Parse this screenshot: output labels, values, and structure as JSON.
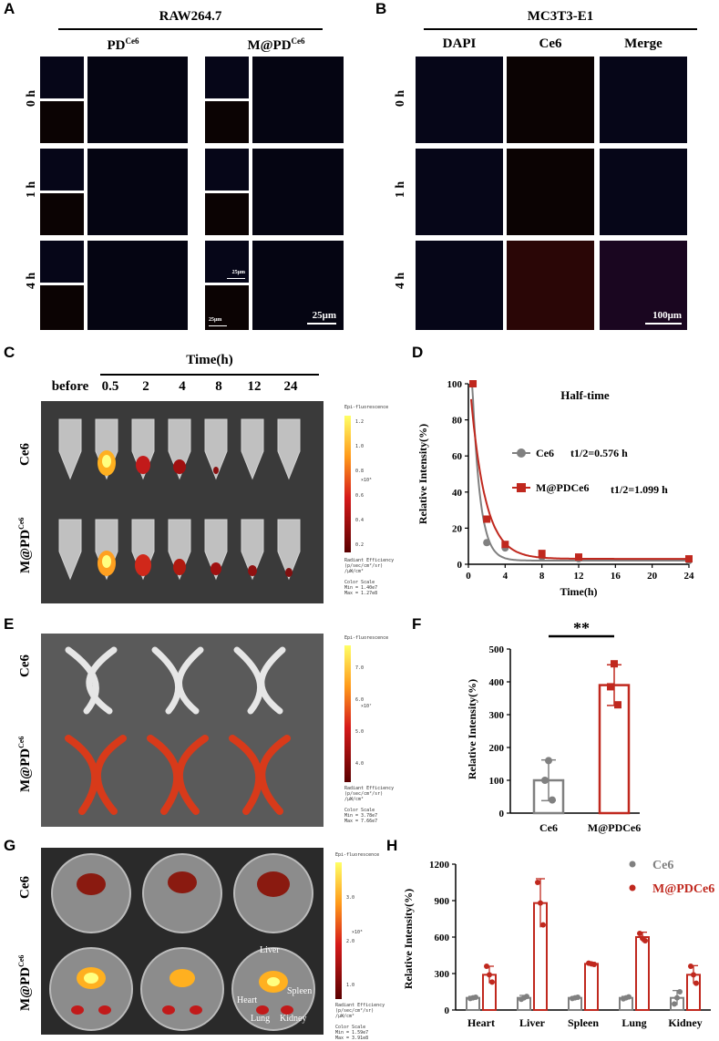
{
  "panels": {
    "A": "A",
    "B": "B",
    "C": "C",
    "D": "D",
    "E": "E",
    "F": "F",
    "G": "G",
    "H": "H"
  },
  "panelA": {
    "title": "RAW264.7",
    "groups": [
      "PD",
      "M@PD"
    ],
    "group_sup": "Ce6",
    "rows": [
      "0 h",
      "1 h",
      "4 h"
    ],
    "scalebar_small": "25μm",
    "scalebar_large": "25μm"
  },
  "panelB": {
    "title": "MC3T3-E1",
    "columns": [
      "DAPI",
      "Ce6",
      "Merge"
    ],
    "rows": [
      "0 h",
      "1 h",
      "4 h"
    ],
    "scalebar": "100μm"
  },
  "panelC": {
    "time_title": "Time(h)",
    "columns": [
      "before",
      "0.5",
      "2",
      "4",
      "8",
      "12",
      "24"
    ],
    "rows": [
      "Ce6",
      "M@PD"
    ],
    "row_sup": "Ce6",
    "colorbar_title": "Epi-fluorescence",
    "colorbar_ticks": [
      "1.2",
      "1.0",
      "0.8",
      "0.6",
      "0.4",
      "0.2"
    ],
    "colorbar_exp": "×10⁸",
    "legend_text": "Radiant Efficiency\n(p/sec/cm²/sr)\n/μW/cm²\n\nColor Scale\nMin = 1.40e7\nMax = 1.27e8"
  },
  "panelE": {
    "rows": [
      "Ce6",
      "M@PD"
    ],
    "row_sup": "Ce6",
    "colorbar_title": "Epi-fluorescence",
    "colorbar_ticks": [
      "7.0",
      "6.0",
      "5.0",
      "4.0"
    ],
    "colorbar_exp": "×10⁷",
    "legend_text": "Radiant Efficiency\n(p/sec/cm²/sr)\n/μW/cm²\n\nColor Scale\nMin = 3.78e7\nMax = 7.66e7"
  },
  "panelG": {
    "rows": [
      "Ce6",
      "M@PD"
    ],
    "row_sup": "Ce6",
    "organ_labels": [
      "Liver",
      "Heart",
      "Spleen",
      "Lung",
      "Kidney"
    ],
    "colorbar_title": "Epi-fluorescence",
    "colorbar_ticks": [
      "3.0",
      "2.0",
      "1.0"
    ],
    "colorbar_exp": "×10⁸",
    "legend_text": "Radiant Efficiency\n(p/sec/cm²/sr)\n/μW/cm²\n\nColor Scale\nMin = 1.59e7\nMax = 3.91e8"
  },
  "colors": {
    "ce6": "#808080",
    "mpd": "#c0281e"
  },
  "chart_data": [
    {
      "panel": "D",
      "type": "line",
      "title": "Half-time",
      "xlabel": "Time(h)",
      "ylabel": "Relative Intensity(%)",
      "xlim": [
        0,
        24
      ],
      "ylim": [
        0,
        100
      ],
      "xticks": [
        "0",
        "4",
        "8",
        "12",
        "16",
        "20",
        "24"
      ],
      "yticks": [
        "0",
        "20",
        "40",
        "60",
        "80",
        "100"
      ],
      "series": [
        {
          "name": "Ce6",
          "annotation": "t1/2=0.576 h",
          "x": [
            0.5,
            2,
            4,
            8,
            12,
            24
          ],
          "y": [
            100,
            12,
            9,
            4,
            3,
            2
          ]
        },
        {
          "name": "M@PDCe6",
          "annotation": "t1/2=1.099 h",
          "x": [
            0.5,
            2,
            4,
            8,
            12,
            24
          ],
          "y": [
            100,
            25,
            11,
            6,
            4,
            3
          ]
        }
      ]
    },
    {
      "panel": "F",
      "type": "bar",
      "ylabel": "Relative Intensity(%)",
      "categories": [
        "Ce6",
        "M@PDCe6"
      ],
      "values": [
        100,
        390
      ],
      "errors": [
        62,
        62
      ],
      "points": [
        [
          160,
          100,
          40
        ],
        [
          455,
          385,
          330
        ]
      ],
      "ylim": [
        0,
        500
      ],
      "yticks": [
        "0",
        "100",
        "200",
        "300",
        "400",
        "500"
      ],
      "significance": "**"
    },
    {
      "panel": "H",
      "type": "bar",
      "ylabel": "Relative Intensity(%)",
      "categories": [
        "Heart",
        "Liver",
        "Spleen",
        "Lung",
        "Kidney"
      ],
      "ylim": [
        0,
        1200
      ],
      "yticks": [
        "0",
        "300",
        "600",
        "900",
        "1200"
      ],
      "series": [
        {
          "name": "Ce6",
          "values": [
            100,
            100,
            100,
            100,
            100
          ],
          "errors": [
            12,
            20,
            8,
            12,
            60
          ],
          "points": [
            [
              95,
              100,
              105
            ],
            [
              88,
              100,
              112
            ],
            [
              95,
              100,
              105
            ],
            [
              92,
              100,
              108
            ],
            [
              50,
              100,
              150
            ]
          ]
        },
        {
          "name": "M@PDCe6",
          "values": [
            290,
            880,
            380,
            600,
            290
          ],
          "errors": [
            70,
            200,
            10,
            40,
            75
          ],
          "points": [
            [
              360,
              290,
              230
            ],
            [
              1050,
              880,
              700
            ],
            [
              385,
              380,
              375
            ],
            [
              630,
              590,
              570
            ],
            [
              360,
              290,
              220
            ]
          ]
        }
      ]
    }
  ]
}
